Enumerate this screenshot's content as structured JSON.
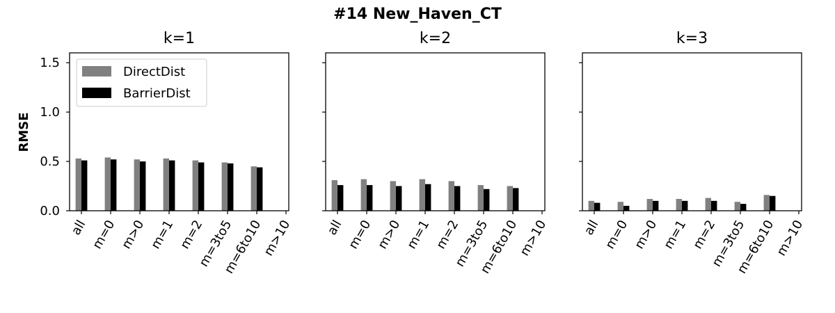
{
  "chart_data": {
    "type": "bar",
    "title": "#14 New_Haven_CT",
    "ylabel": "RMSE",
    "ylim": [
      0,
      1.6
    ],
    "yticks": [
      "0.0",
      "0.5",
      "1.0",
      "1.5"
    ],
    "categories": [
      "all",
      "m=0",
      "m>0",
      "m=1",
      "m=2",
      "m=3to5",
      "m=6to10",
      "m>10"
    ],
    "colors": {
      "DirectDist": "#808080",
      "BarrierDist": "#000000"
    },
    "legend": {
      "placement": "top-left",
      "entries": [
        "DirectDist",
        "BarrierDist"
      ]
    },
    "grid": false,
    "panels": [
      {
        "title": "k=1",
        "series": [
          {
            "name": "DirectDist",
            "values": [
              0.53,
              0.54,
              0.52,
              0.53,
              0.51,
              0.49,
              0.45,
              null
            ]
          },
          {
            "name": "BarrierDist",
            "values": [
              0.51,
              0.52,
              0.5,
              0.51,
              0.49,
              0.48,
              0.44,
              null
            ]
          }
        ]
      },
      {
        "title": "k=2",
        "series": [
          {
            "name": "DirectDist",
            "values": [
              0.31,
              0.32,
              0.3,
              0.32,
              0.3,
              0.26,
              0.25,
              null
            ]
          },
          {
            "name": "BarrierDist",
            "values": [
              0.26,
              0.26,
              0.25,
              0.27,
              0.25,
              0.22,
              0.23,
              null
            ]
          }
        ]
      },
      {
        "title": "k=3",
        "series": [
          {
            "name": "DirectDist",
            "values": [
              0.1,
              0.09,
              0.12,
              0.12,
              0.13,
              0.09,
              0.16,
              null
            ]
          },
          {
            "name": "BarrierDist",
            "values": [
              0.08,
              0.05,
              0.1,
              0.1,
              0.1,
              0.07,
              0.15,
              null
            ]
          }
        ]
      }
    ]
  }
}
